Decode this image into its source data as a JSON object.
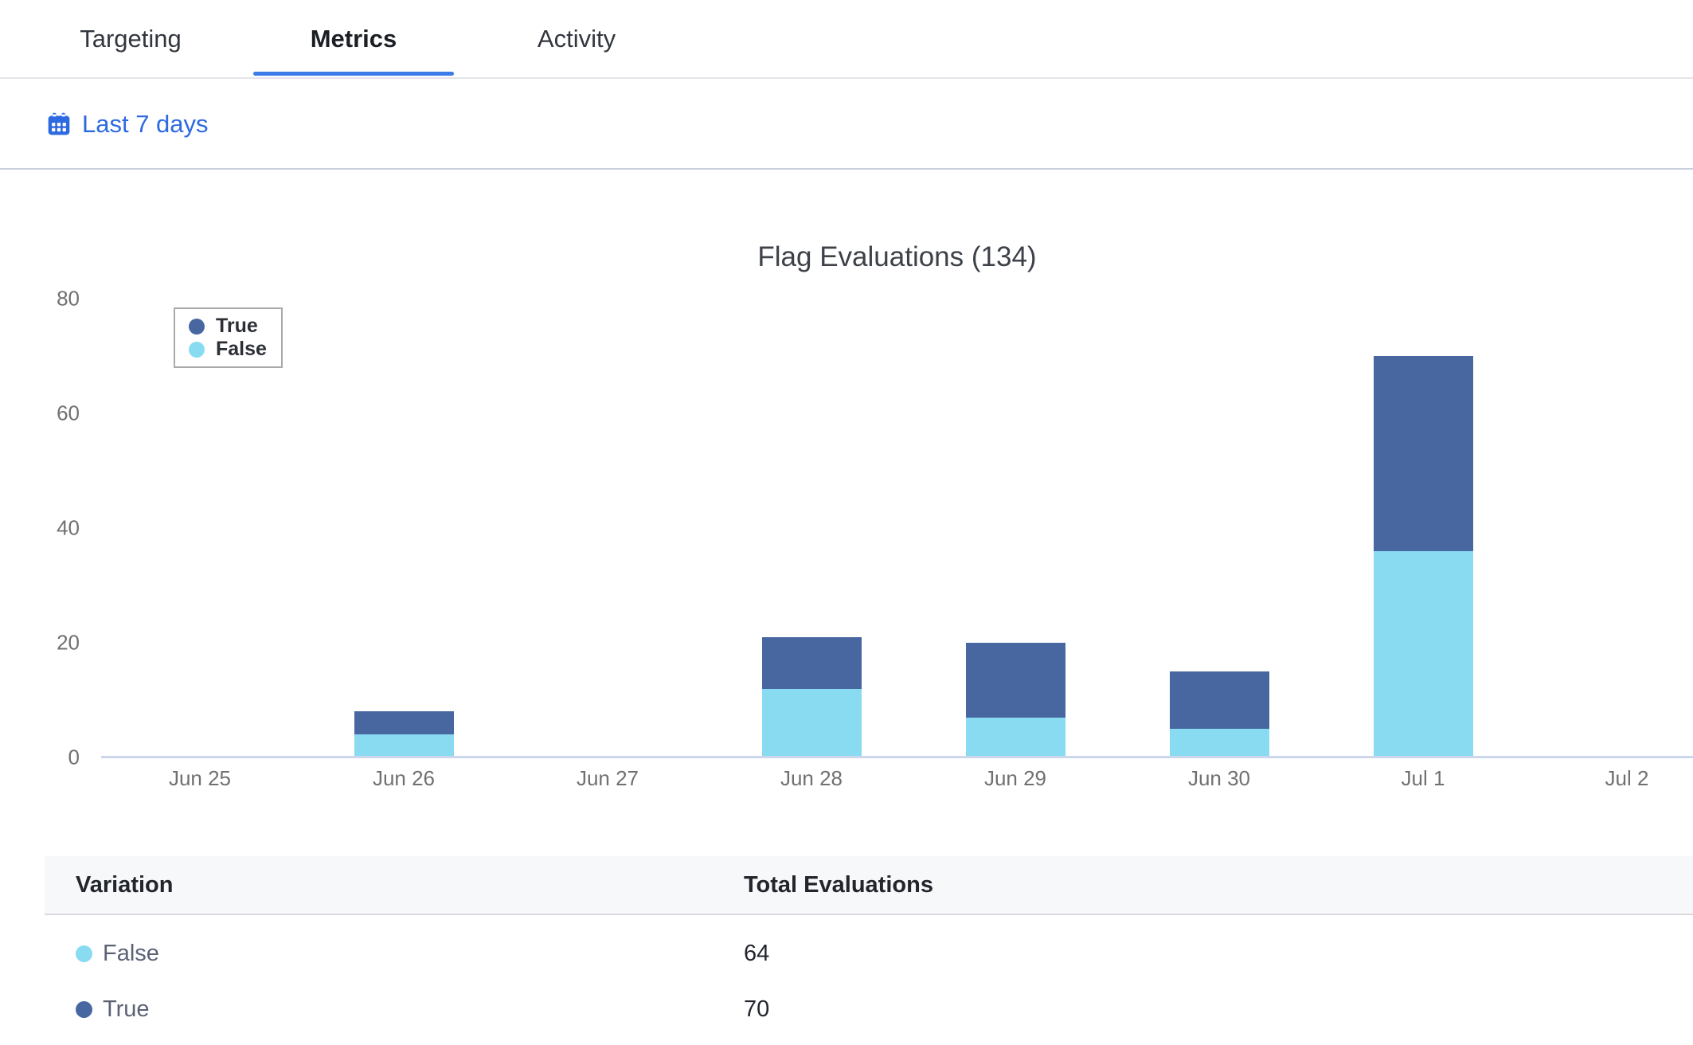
{
  "tabs": {
    "items": [
      {
        "label": "Targeting",
        "active": false
      },
      {
        "label": "Metrics",
        "active": true
      },
      {
        "label": "Activity",
        "active": false
      }
    ]
  },
  "date_filter": {
    "label": "Last 7 days",
    "icon": "calendar-icon",
    "color": "#2d6ae1"
  },
  "chart_data": {
    "type": "bar",
    "stacked": true,
    "title": "Flag Evaluations (134)",
    "total_evaluations": 134,
    "categories": [
      "Jun 25",
      "Jun 26",
      "Jun 27",
      "Jun 28",
      "Jun 29",
      "Jun 30",
      "Jul 1",
      "Jul 2"
    ],
    "series": [
      {
        "name": "True",
        "color": "#4867a0",
        "values": [
          0,
          4,
          0,
          9,
          13,
          10,
          34,
          0
        ]
      },
      {
        "name": "False",
        "color": "#89dbf1",
        "values": [
          0,
          4,
          0,
          12,
          7,
          5,
          36,
          0
        ]
      }
    ],
    "xlabel": "",
    "ylabel": "",
    "ylim": [
      0,
      80
    ],
    "yticks": [
      0,
      20,
      40,
      60,
      80
    ],
    "legend_position": "top-left",
    "grid": false
  },
  "table": {
    "columns": [
      "Variation",
      "Total Evaluations"
    ],
    "rows": [
      {
        "variation": "False",
        "color": "#89dbf1",
        "total": "64"
      },
      {
        "variation": "True",
        "color": "#4867a0",
        "total": "70"
      }
    ]
  }
}
